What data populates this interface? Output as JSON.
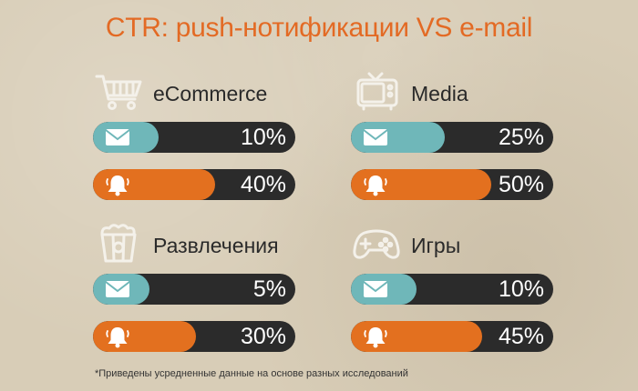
{
  "title": "CTR: push-нотификации VS e-mail",
  "footnote": "*Приведены усредненные данные на основе разных исследований",
  "colors": {
    "title": "#e36a24",
    "email": "#6fb7b9",
    "push": "#e3701f",
    "track": "#2b2b2b"
  },
  "chart_data": {
    "type": "bar",
    "title": "CTR: push-нотификации VS e-mail",
    "ylim": [
      0,
      100
    ],
    "unit": "%",
    "categories": [
      "eCommerce",
      "Media",
      "Развлечения",
      "Игры"
    ],
    "series": [
      {
        "channel": "e-mail",
        "icon": "envelope-icon",
        "values": [
          10,
          25,
          5,
          10
        ]
      },
      {
        "channel": "push",
        "icon": "bell-icon",
        "values": [
          40,
          50,
          30,
          45
        ]
      }
    ],
    "panels": [
      {
        "label": "eCommerce",
        "icon": "shopping-cart-icon",
        "email": 10,
        "push": 40,
        "email_label": "10%",
        "push_label": "40%"
      },
      {
        "label": "Media",
        "icon": "tv-icon",
        "email": 25,
        "push": 50,
        "email_label": "25%",
        "push_label": "50%"
      },
      {
        "label": "Развлечения",
        "icon": "popcorn-icon",
        "email": 5,
        "push": 30,
        "email_label": "5%",
        "push_label": "30%"
      },
      {
        "label": "Игры",
        "icon": "gamepad-icon",
        "email": 10,
        "push": 45,
        "email_label": "10%",
        "push_label": "45%"
      }
    ]
  }
}
